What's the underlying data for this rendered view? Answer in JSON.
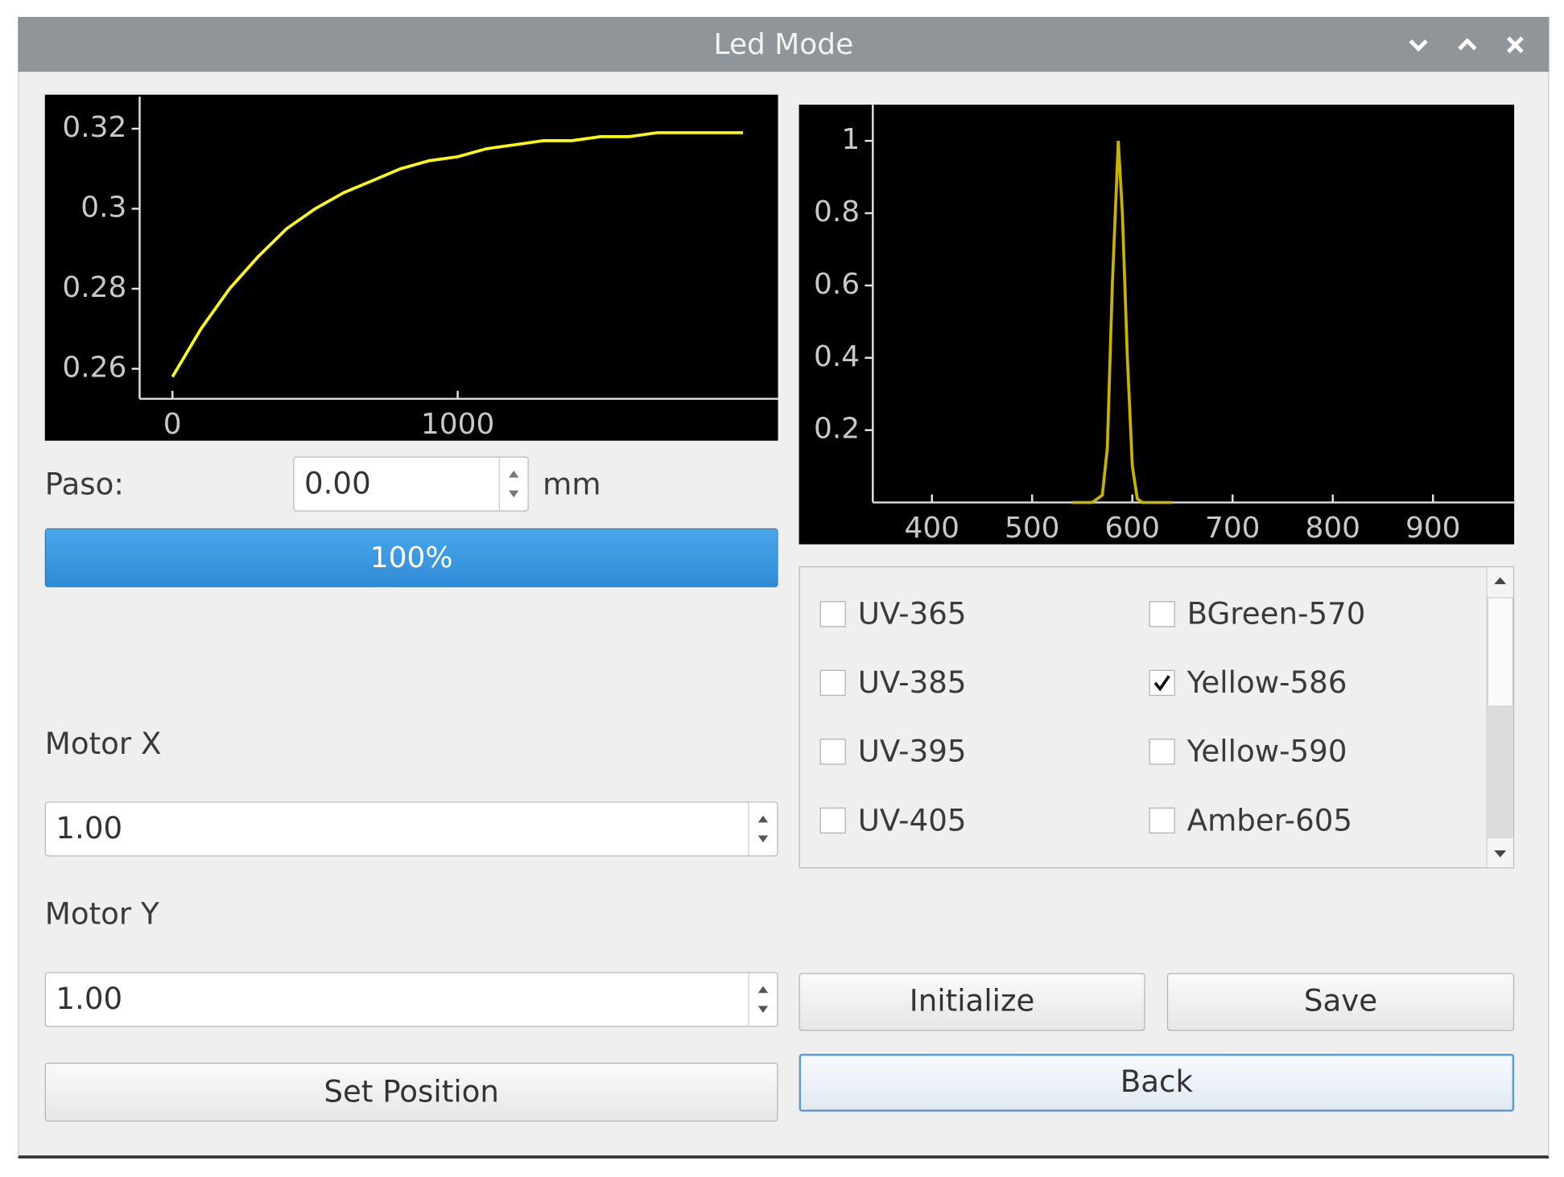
{
  "window": {
    "title": "Led Mode"
  },
  "chart_data": [
    {
      "type": "line",
      "x": [
        0,
        100,
        200,
        300,
        400,
        500,
        600,
        700,
        800,
        900,
        1000,
        1100,
        1200,
        1300,
        1400,
        1500,
        1600,
        1700,
        1800,
        1900,
        2000
      ],
      "values": [
        0.258,
        0.27,
        0.28,
        0.288,
        0.295,
        0.3,
        0.304,
        0.307,
        0.31,
        0.312,
        0.313,
        0.315,
        0.316,
        0.317,
        0.317,
        0.318,
        0.318,
        0.319,
        0.319,
        0.319,
        0.319
      ],
      "color": "#ffff00",
      "xlim": [
        -115,
        2123
      ],
      "ylim": [
        0.2525,
        0.328
      ],
      "xticks": [
        0,
        1000
      ],
      "yticks": [
        0.26,
        0.28,
        0.3,
        0.32
      ]
    },
    {
      "type": "line",
      "x": [
        540,
        560,
        570,
        575,
        580,
        586,
        590,
        595,
        600,
        605,
        610,
        640
      ],
      "values": [
        0,
        0,
        0.02,
        0.15,
        0.6,
        1,
        0.8,
        0.4,
        0.1,
        0.01,
        0,
        0
      ],
      "color": "#c8b400",
      "xlim": [
        341,
        981
      ],
      "ylim": [
        0,
        1.1
      ],
      "xticks": [
        400,
        500,
        600,
        700,
        800,
        900
      ],
      "yticks": [
        0.2,
        0.4,
        0.6,
        0.8,
        1
      ]
    }
  ],
  "paso": {
    "label": "Paso:",
    "value": "0.00",
    "unit": "mm"
  },
  "progress": {
    "value": 100,
    "label": "100%"
  },
  "motor_x": {
    "label": "Motor X",
    "value": "1.00"
  },
  "motor_y": {
    "label": "Motor Y",
    "value": "1.00"
  },
  "leds": [
    {
      "label": "UV-365",
      "checked": false
    },
    {
      "label": "BGreen-570",
      "checked": false
    },
    {
      "label": "UV-385",
      "checked": false
    },
    {
      "label": "Yellow-586",
      "checked": true
    },
    {
      "label": "UV-395",
      "checked": false
    },
    {
      "label": "Yellow-590",
      "checked": false
    },
    {
      "label": "UV-405",
      "checked": false
    },
    {
      "label": "Amber-605",
      "checked": false
    }
  ],
  "buttons": {
    "set_position": "Set Position",
    "initialize": "Initialize",
    "save": "Save",
    "back": "Back"
  }
}
